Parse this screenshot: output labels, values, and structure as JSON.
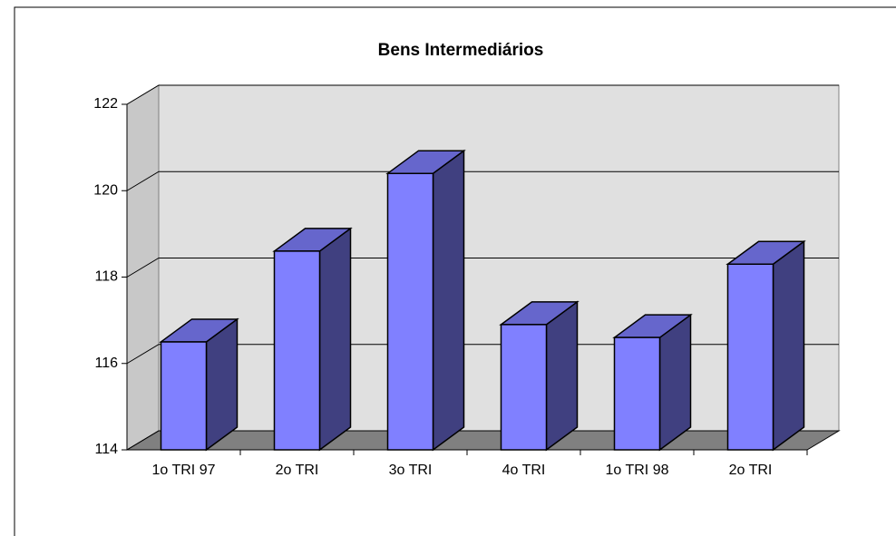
{
  "chart_data": {
    "type": "bar3d",
    "title": "Bens Intermediários",
    "categories": [
      "1o TRI 97",
      "2o TRI",
      "3o TRI",
      "4o TRI",
      "1o TRI 98",
      "2o TRI"
    ],
    "values": [
      116.5,
      118.6,
      120.4,
      116.9,
      116.6,
      118.3
    ],
    "color": "#8080ff",
    "ylim": [
      114,
      122
    ],
    "yticks": [
      114,
      116,
      118,
      120,
      122
    ],
    "grid": true
  }
}
